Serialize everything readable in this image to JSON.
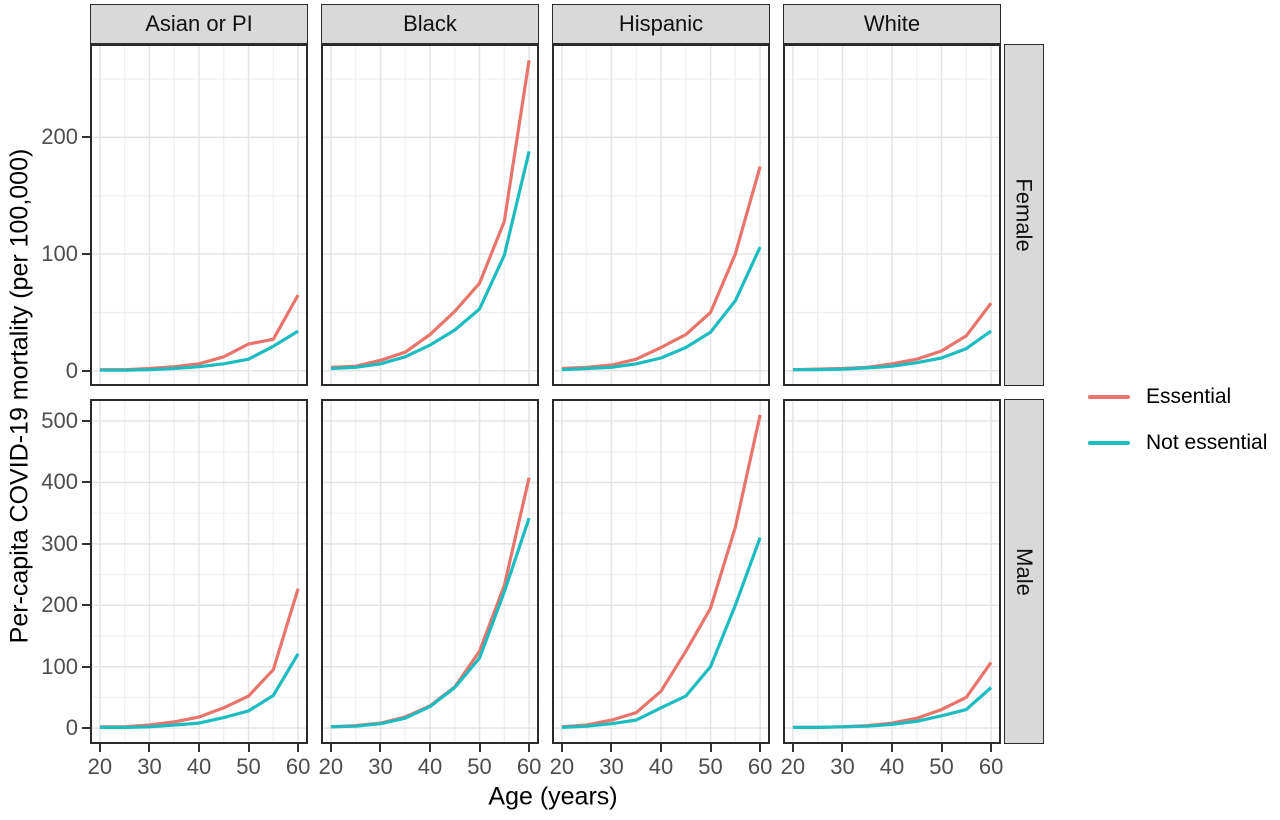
{
  "y_axis": {
    "title": "Per-capita COVID-19 mortality (per 100,000)"
  },
  "x_axis": {
    "title": "Age (years)",
    "range": [
      18,
      62
    ],
    "major_ticks": [
      20,
      30,
      40,
      50,
      60
    ],
    "minor_ticks": [
      25,
      35,
      45,
      55
    ]
  },
  "facets": {
    "columns": [
      "Asian or PI",
      "Black",
      "Hispanic",
      "White"
    ],
    "rows": [
      "Female",
      "Male"
    ]
  },
  "legend": {
    "items": [
      {
        "label": "Essential",
        "color": "#E8746B"
      },
      {
        "label": "Not essential",
        "color": "#1CBCC0"
      }
    ]
  },
  "style": {
    "strip_bg": "#D9D9D9",
    "panel_border": "#2B2B2B",
    "grid_major": "#E3E3E3",
    "grid_minor": "#F0F0F0",
    "tick_color": "#333333",
    "axis_text_color": "#4D4D4D",
    "line_width": 3.2
  },
  "chart_data": {
    "type": "line",
    "x": [
      20,
      25,
      30,
      35,
      40,
      45,
      50,
      55,
      60
    ],
    "xlabel": "Age (years)",
    "ylabel": "Per-capita COVID-19 mortality (per 100,000)",
    "legend_position": "right",
    "grid": true,
    "rows": [
      {
        "facet_row": "Female",
        "ylim": [
          -13,
          280
        ],
        "yticks": [
          0,
          100,
          200
        ],
        "yminor": [
          50,
          150,
          250
        ],
        "panels": [
          {
            "facet_col": "Asian or PI",
            "series": [
              {
                "name": "Essential",
                "values": [
                  1,
                  1,
                  2,
                  3.5,
                  6,
                  12,
                  23,
                  27,
                  65
                ]
              },
              {
                "name": "Not essential",
                "values": [
                  0.5,
                  0.5,
                  1,
                  2,
                  3.5,
                  6,
                  10,
                  21,
                  34
                ]
              }
            ]
          },
          {
            "facet_col": "Black",
            "series": [
              {
                "name": "Essential",
                "values": [
                  3,
                  4,
                  9,
                  16,
                  31,
                  51,
                  75,
                  128,
                  266
                ]
              },
              {
                "name": "Not essential",
                "values": [
                  2,
                  3,
                  6,
                  12,
                  22,
                  35,
                  53,
                  99,
                  188
                ]
              }
            ]
          },
          {
            "facet_col": "Hispanic",
            "series": [
              {
                "name": "Essential",
                "values": [
                  2,
                  3,
                  5,
                  10,
                  20,
                  31,
                  50,
                  100,
                  175
                ]
              },
              {
                "name": "Not essential",
                "values": [
                  1,
                  2,
                  3,
                  6,
                  11,
                  20,
                  33,
                  60,
                  106
                ]
              }
            ]
          },
          {
            "facet_col": "White",
            "series": [
              {
                "name": "Essential",
                "values": [
                  1,
                  1.5,
                  2,
                  3,
                  6,
                  10,
                  17,
                  30,
                  58
                ]
              },
              {
                "name": "Not essential",
                "values": [
                  1,
                  1,
                  1.5,
                  2.5,
                  4,
                  7,
                  11,
                  19,
                  34
                ]
              }
            ]
          }
        ]
      },
      {
        "facet_row": "Male",
        "ylim": [
          -26,
          536
        ],
        "yticks": [
          0,
          100,
          200,
          300,
          400,
          500
        ],
        "yminor": [
          50,
          150,
          250,
          350,
          450
        ],
        "panels": [
          {
            "facet_col": "Asian or PI",
            "series": [
              {
                "name": "Essential",
                "values": [
                  2,
                  2,
                  5,
                  10,
                  18,
                  33,
                  52,
                  95,
                  227
                ]
              },
              {
                "name": "Not essential",
                "values": [
                  1,
                  1,
                  2,
                  5,
                  8,
                  17,
                  28,
                  53,
                  121
                ]
              }
            ]
          },
          {
            "facet_col": "Black",
            "series": [
              {
                "name": "Essential",
                "values": [
                  2,
                  4,
                  8,
                  18,
                  36,
                  67,
                  125,
                  232,
                  408
                ]
              },
              {
                "name": "Not essential",
                "values": [
                  2,
                  3,
                  7,
                  16,
                  35,
                  66,
                  114,
                  222,
                  342
                ]
              }
            ]
          },
          {
            "facet_col": "Hispanic",
            "series": [
              {
                "name": "Essential",
                "values": [
                  2,
                  5,
                  13,
                  25,
                  60,
                  125,
                  195,
                  327,
                  510
                ]
              },
              {
                "name": "Not essential",
                "values": [
                  1,
                  3,
                  7,
                  13,
                  33,
                  52,
                  100,
                  200,
                  310
                ]
              }
            ]
          },
          {
            "facet_col": "White",
            "series": [
              {
                "name": "Essential",
                "values": [
                  1,
                  1,
                  2,
                  4,
                  8,
                  16,
                  30,
                  50,
                  107
                ]
              },
              {
                "name": "Not essential",
                "values": [
                  1,
                  1,
                  2,
                  3,
                  6,
                  11,
                  20,
                  30,
                  66
                ]
              }
            ]
          }
        ]
      }
    ]
  }
}
